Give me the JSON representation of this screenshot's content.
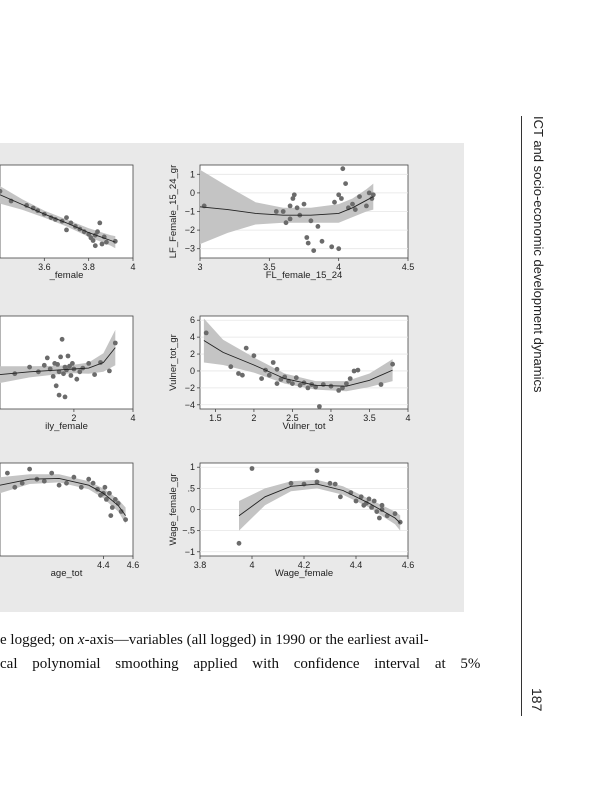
{
  "running_head": "ICT and socio-economic development dynamics",
  "page_number": "187",
  "caption": {
    "line1_before_italic": "e logged; on ",
    "line1_italic": "x",
    "line1_after_italic": "-axis—variables (all logged) in 1990 or the earliest avail-",
    "line2": "cal polynomial smoothing applied with confidence interval at 5%"
  },
  "colors": {
    "panel_bg": "#e9e9e9",
    "plot_bg": "#ffffff",
    "band": "#c4c4c4",
    "points": "#6b6b6b",
    "line": "#222222"
  },
  "chart_data": [
    {
      "type": "scatter",
      "ylabel": "",
      "xlabel": "_female",
      "xlim": [
        3.4,
        4.0
      ],
      "ylim": [
        -3.5,
        1.8
      ],
      "xticks": [
        {
          "v": 3.6,
          "label": "3.6"
        },
        {
          "v": 3.8,
          "label": "3.8"
        },
        {
          "v": 4.0,
          "label": "4"
        }
      ],
      "yticks": [],
      "points": [
        [
          3.4,
          0.3
        ],
        [
          3.45,
          -0.25
        ],
        [
          3.52,
          -0.5
        ],
        [
          3.55,
          -0.65
        ],
        [
          3.57,
          -0.8
        ],
        [
          3.6,
          -1.0
        ],
        [
          3.63,
          -1.2
        ],
        [
          3.65,
          -1.3
        ],
        [
          3.68,
          -1.4
        ],
        [
          3.7,
          -1.2
        ],
        [
          3.72,
          -1.5
        ],
        [
          3.74,
          -1.7
        ],
        [
          3.76,
          -1.85
        ],
        [
          3.78,
          -2.0
        ],
        [
          3.8,
          -2.15
        ],
        [
          3.81,
          -2.35
        ],
        [
          3.82,
          -2.5
        ],
        [
          3.83,
          -2.2
        ],
        [
          3.84,
          -2.0
        ],
        [
          3.85,
          -1.5
        ],
        [
          3.86,
          -2.7
        ],
        [
          3.87,
          -2.3
        ],
        [
          3.88,
          -2.6
        ],
        [
          3.83,
          -2.8
        ],
        [
          3.7,
          -1.9
        ],
        [
          3.92,
          -2.55
        ]
      ],
      "smooth": [
        [
          3.4,
          0.1,
          0.5
        ],
        [
          3.5,
          -0.45,
          0.3
        ],
        [
          3.6,
          -1.0,
          0.2
        ],
        [
          3.7,
          -1.5,
          0.2
        ],
        [
          3.8,
          -2.05,
          0.25
        ],
        [
          3.9,
          -2.5,
          0.3
        ],
        [
          3.92,
          -2.6,
          0.35
        ]
      ]
    },
    {
      "type": "scatter",
      "ylabel": "LF_Female_15_24_gr",
      "xlabel": "FL_female_15_24",
      "xlim": [
        3.0,
        4.5
      ],
      "ylim": [
        -3.5,
        1.5
      ],
      "xticks": [
        {
          "v": 3.0,
          "label": "3"
        },
        {
          "v": 3.5,
          "label": "3.5"
        },
        {
          "v": 4.0,
          "label": "4"
        },
        {
          "v": 4.5,
          "label": "4.5"
        }
      ],
      "yticks": [
        {
          "v": 1,
          "label": "1"
        },
        {
          "v": 0,
          "label": "0"
        },
        {
          "v": -1,
          "label": "−1"
        },
        {
          "v": -2,
          "label": "−2"
        },
        {
          "v": -3,
          "label": "−3"
        }
      ],
      "points": [
        [
          3.03,
          -0.7
        ],
        [
          3.55,
          -1.0
        ],
        [
          3.6,
          -1.0
        ],
        [
          3.62,
          -1.6
        ],
        [
          3.65,
          -1.4
        ],
        [
          3.65,
          -0.7
        ],
        [
          3.67,
          -0.3
        ],
        [
          3.68,
          -0.1
        ],
        [
          3.7,
          -0.8
        ],
        [
          3.72,
          -1.2
        ],
        [
          3.75,
          -0.6
        ],
        [
          3.77,
          -2.4
        ],
        [
          3.78,
          -2.7
        ],
        [
          3.8,
          -1.5
        ],
        [
          3.82,
          -3.1
        ],
        [
          3.85,
          -1.8
        ],
        [
          3.88,
          -2.6
        ],
        [
          3.95,
          -2.9
        ],
        [
          3.97,
          -0.5
        ],
        [
          4.0,
          -0.1
        ],
        [
          4.02,
          -0.3
        ],
        [
          4.03,
          1.3
        ],
        [
          4.05,
          0.5
        ],
        [
          4.07,
          -0.8
        ],
        [
          4.1,
          -0.6
        ],
        [
          4.15,
          -0.2
        ],
        [
          4.2,
          -0.7
        ],
        [
          4.22,
          0.0
        ],
        [
          4.24,
          -0.3
        ],
        [
          4.25,
          -0.1
        ],
        [
          4.0,
          -3.0
        ],
        [
          4.12,
          -0.9
        ]
      ],
      "smooth": [
        [
          3.0,
          -0.75,
          2.0
        ],
        [
          3.2,
          -0.9,
          1.25
        ],
        [
          3.4,
          -1.1,
          0.6
        ],
        [
          3.6,
          -1.2,
          0.4
        ],
        [
          3.8,
          -1.2,
          0.4
        ],
        [
          4.0,
          -1.1,
          0.5
        ],
        [
          4.1,
          -0.8,
          0.5
        ],
        [
          4.2,
          -0.4,
          0.6
        ],
        [
          4.25,
          -0.2,
          0.7
        ]
      ]
    },
    {
      "type": "scatter",
      "ylabel": "",
      "xlabel": "ily_female",
      "xlim": [
        -0.5,
        4.0
      ],
      "ylim": [
        -3,
        7
      ],
      "xticks": [
        {
          "v": 2,
          "label": "2"
        },
        {
          "v": 4,
          "label": "4"
        }
      ],
      "yticks": [],
      "points": [
        [
          0.0,
          0.8
        ],
        [
          0.5,
          1.5
        ],
        [
          0.8,
          1.0
        ],
        [
          1.0,
          1.7
        ],
        [
          1.1,
          2.5
        ],
        [
          1.2,
          1.3
        ],
        [
          1.3,
          0.5
        ],
        [
          1.35,
          1.9
        ],
        [
          1.4,
          -0.5
        ],
        [
          1.45,
          1.8
        ],
        [
          1.5,
          1.0
        ],
        [
          1.55,
          2.6
        ],
        [
          1.6,
          4.5
        ],
        [
          1.65,
          0.8
        ],
        [
          1.7,
          1.5
        ],
        [
          1.75,
          1.2
        ],
        [
          1.8,
          2.7
        ],
        [
          1.85,
          1.6
        ],
        [
          1.9,
          0.6
        ],
        [
          1.95,
          1.9
        ],
        [
          2.0,
          1.3
        ],
        [
          2.1,
          0.2
        ],
        [
          2.2,
          1.0
        ],
        [
          2.3,
          1.4
        ],
        [
          2.5,
          1.9
        ],
        [
          2.7,
          0.7
        ],
        [
          2.9,
          2.0
        ],
        [
          3.2,
          1.1
        ],
        [
          3.4,
          4.1
        ],
        [
          1.5,
          -1.5
        ],
        [
          1.7,
          -1.7
        ]
      ],
      "smooth": [
        [
          -0.5,
          0.7,
          0.9
        ],
        [
          0.5,
          1.0,
          0.6
        ],
        [
          1.5,
          1.2,
          0.45
        ],
        [
          2.0,
          1.3,
          0.45
        ],
        [
          2.5,
          1.4,
          0.6
        ],
        [
          3.0,
          2.0,
          1.0
        ],
        [
          3.4,
          3.6,
          1.9
        ]
      ]
    },
    {
      "type": "scatter",
      "ylabel": "Vulner_tot_gr",
      "xlabel": "Vulner_tot",
      "xlim": [
        1.3,
        4.0
      ],
      "ylim": [
        -4.5,
        6.5
      ],
      "xticks": [
        {
          "v": 1.5,
          "label": "1.5"
        },
        {
          "v": 2,
          "label": "2"
        },
        {
          "v": 2.5,
          "label": "2.5"
        },
        {
          "v": 3,
          "label": "3"
        },
        {
          "v": 3.5,
          "label": "3.5"
        },
        {
          "v": 4,
          "label": "4"
        }
      ],
      "yticks": [
        {
          "v": 6,
          "label": "6"
        },
        {
          "v": 4,
          "label": "4"
        },
        {
          "v": 2,
          "label": "2"
        },
        {
          "v": 0,
          "label": "0"
        },
        {
          "v": -2,
          "label": "−2"
        },
        {
          "v": -4,
          "label": "−4"
        }
      ],
      "points": [
        [
          1.38,
          4.5
        ],
        [
          1.7,
          0.5
        ],
        [
          1.8,
          -0.3
        ],
        [
          1.85,
          -0.5
        ],
        [
          1.9,
          2.7
        ],
        [
          2.0,
          1.8
        ],
        [
          2.1,
          -0.9
        ],
        [
          2.15,
          0.1
        ],
        [
          2.2,
          -0.5
        ],
        [
          2.25,
          1.0
        ],
        [
          2.3,
          0.2
        ],
        [
          2.3,
          -1.5
        ],
        [
          2.35,
          -1.0
        ],
        [
          2.4,
          -0.7
        ],
        [
          2.45,
          -1.2
        ],
        [
          2.5,
          -1.5
        ],
        [
          2.55,
          -0.8
        ],
        [
          2.6,
          -1.7
        ],
        [
          2.65,
          -1.4
        ],
        [
          2.7,
          -2.0
        ],
        [
          2.75,
          -1.6
        ],
        [
          2.8,
          -1.9
        ],
        [
          2.85,
          -4.2
        ],
        [
          2.9,
          -1.6
        ],
        [
          3.0,
          -1.8
        ],
        [
          3.1,
          -2.3
        ],
        [
          3.15,
          -2.0
        ],
        [
          3.2,
          -1.5
        ],
        [
          3.25,
          -0.9
        ],
        [
          3.3,
          0.0
        ],
        [
          3.35,
          0.1
        ],
        [
          3.65,
          -1.6
        ],
        [
          3.8,
          0.8
        ]
      ],
      "smooth": [
        [
          1.35,
          3.6,
          2.6
        ],
        [
          1.6,
          2.2,
          1.5
        ],
        [
          2.0,
          0.7,
          0.9
        ],
        [
          2.4,
          -0.9,
          0.6
        ],
        [
          2.8,
          -1.7,
          0.5
        ],
        [
          3.2,
          -1.8,
          0.6
        ],
        [
          3.5,
          -1.1,
          0.8
        ],
        [
          3.8,
          0.1,
          1.3
        ]
      ]
    },
    {
      "type": "scatter",
      "ylabel": "",
      "xlabel": "age_tot",
      "xlim": [
        3.7,
        4.6
      ],
      "ylim": [
        -1.2,
        1.1
      ],
      "xticks": [
        {
          "v": 4.4,
          "label": "4.4"
        },
        {
          "v": 4.6,
          "label": "4.6"
        }
      ],
      "yticks": [],
      "points": [
        [
          3.75,
          0.85
        ],
        [
          3.8,
          0.5
        ],
        [
          3.85,
          0.6
        ],
        [
          3.9,
          0.95
        ],
        [
          3.95,
          0.7
        ],
        [
          4.0,
          0.65
        ],
        [
          4.05,
          0.85
        ],
        [
          4.1,
          0.55
        ],
        [
          4.15,
          0.6
        ],
        [
          4.2,
          0.75
        ],
        [
          4.25,
          0.5
        ],
        [
          4.3,
          0.7
        ],
        [
          4.33,
          0.6
        ],
        [
          4.36,
          0.45
        ],
        [
          4.38,
          0.3
        ],
        [
          4.4,
          0.35
        ],
        [
          4.42,
          0.2
        ],
        [
          4.44,
          0.35
        ],
        [
          4.46,
          0.0
        ],
        [
          4.48,
          0.2
        ],
        [
          4.5,
          0.1
        ],
        [
          4.52,
          -0.1
        ],
        [
          4.55,
          -0.3
        ],
        [
          4.45,
          -0.2
        ],
        [
          4.41,
          0.5
        ]
      ],
      "smooth": [
        [
          3.7,
          0.55,
          0.2
        ],
        [
          3.9,
          0.7,
          0.12
        ],
        [
          4.1,
          0.72,
          0.1
        ],
        [
          4.3,
          0.55,
          0.1
        ],
        [
          4.4,
          0.35,
          0.12
        ],
        [
          4.5,
          0.05,
          0.15
        ],
        [
          4.55,
          -0.2,
          0.2
        ]
      ]
    },
    {
      "type": "scatter",
      "ylabel": "Wage_female_gr",
      "xlabel": "Wage_female",
      "xlim": [
        3.8,
        4.6
      ],
      "ylim": [
        -1.1,
        1.1
      ],
      "xticks": [
        {
          "v": 3.8,
          "label": "3.8"
        },
        {
          "v": 4,
          "label": "4"
        },
        {
          "v": 4.2,
          "label": "4.2"
        },
        {
          "v": 4.4,
          "label": "4.4"
        },
        {
          "v": 4.6,
          "label": "4.6"
        }
      ],
      "yticks": [
        {
          "v": 1,
          "label": "1"
        },
        {
          "v": 0.5,
          "label": ".5"
        },
        {
          "v": 0,
          "label": "0"
        },
        {
          "v": -0.5,
          "label": "−.5"
        },
        {
          "v": -1,
          "label": "−1"
        }
      ],
      "points": [
        [
          3.95,
          -0.8
        ],
        [
          4.0,
          0.97
        ],
        [
          4.25,
          0.92
        ],
        [
          4.15,
          0.62
        ],
        [
          4.2,
          0.6
        ],
        [
          4.25,
          0.65
        ],
        [
          4.3,
          0.62
        ],
        [
          4.32,
          0.6
        ],
        [
          4.34,
          0.3
        ],
        [
          4.38,
          0.4
        ],
        [
          4.4,
          0.2
        ],
        [
          4.42,
          0.3
        ],
        [
          4.44,
          0.15
        ],
        [
          4.45,
          0.25
        ],
        [
          4.46,
          0.05
        ],
        [
          4.47,
          0.2
        ],
        [
          4.48,
          -0.05
        ],
        [
          4.5,
          0.0
        ],
        [
          4.5,
          0.1
        ],
        [
          4.52,
          -0.15
        ],
        [
          4.55,
          -0.1
        ],
        [
          4.57,
          -0.3
        ],
        [
          4.49,
          -0.2
        ],
        [
          4.43,
          0.1
        ]
      ],
      "smooth": [
        [
          3.95,
          -0.15,
          0.35
        ],
        [
          4.05,
          0.3,
          0.2
        ],
        [
          4.15,
          0.55,
          0.12
        ],
        [
          4.25,
          0.6,
          0.1
        ],
        [
          4.35,
          0.45,
          0.1
        ],
        [
          4.45,
          0.15,
          0.1
        ],
        [
          4.55,
          -0.2,
          0.15
        ],
        [
          4.57,
          -0.32,
          0.18
        ]
      ]
    }
  ]
}
